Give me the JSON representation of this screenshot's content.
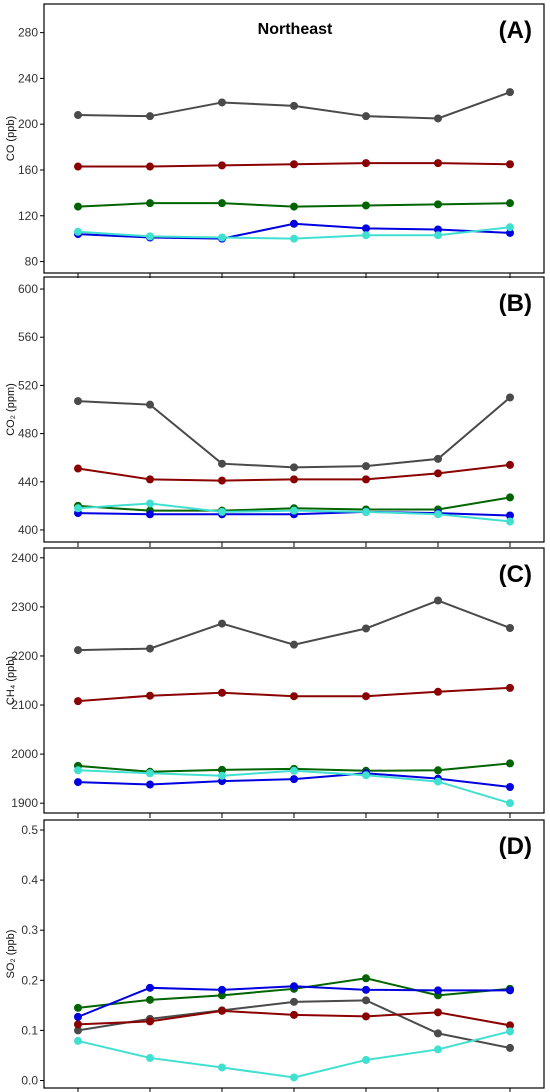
{
  "chart_data": [
    {
      "type": "line",
      "panel": "(A)",
      "title": "Northeast",
      "ylabel": "CO (ppb)",
      "ylim": [
        70,
        305
      ],
      "yticks": [
        "80",
        "120",
        "160",
        "200",
        "240",
        "280"
      ],
      "x": [
        1,
        2,
        3,
        4,
        5,
        6,
        7
      ],
      "series": [
        {
          "color": "#4a4a4a",
          "values": [
            208,
            207,
            219,
            216,
            207,
            205,
            228
          ]
        },
        {
          "color": "#8b0000",
          "values": [
            163,
            163,
            164,
            165,
            166,
            166,
            165
          ]
        },
        {
          "color": "#006400",
          "values": [
            128,
            131,
            131,
            128,
            129,
            130,
            131
          ]
        },
        {
          "color": "#0000e0",
          "values": [
            104,
            101,
            100,
            113,
            109,
            108,
            105
          ]
        },
        {
          "color": "#40e0d0",
          "values": [
            106,
            102,
            101,
            100,
            103,
            103,
            110
          ]
        }
      ]
    },
    {
      "type": "line",
      "panel": "(B)",
      "title": "",
      "ylabel": "CO₂ (ppm)",
      "ylim": [
        390,
        610
      ],
      "yticks": [
        "400",
        "440",
        "480",
        "520",
        "560",
        "600"
      ],
      "x": [
        1,
        2,
        3,
        4,
        5,
        6,
        7
      ],
      "series": [
        {
          "color": "#4a4a4a",
          "values": [
            507,
            504,
            455,
            452,
            453,
            459,
            510
          ]
        },
        {
          "color": "#8b0000",
          "values": [
            451,
            442,
            441,
            442,
            442,
            447,
            454
          ]
        },
        {
          "color": "#006400",
          "values": [
            420,
            416,
            416,
            418,
            417,
            417,
            427
          ]
        },
        {
          "color": "#0000e0",
          "values": [
            414,
            413,
            413,
            413,
            415,
            414,
            412
          ]
        },
        {
          "color": "#40e0d0",
          "values": [
            418,
            422,
            415,
            416,
            415,
            413,
            407
          ]
        }
      ]
    },
    {
      "type": "line",
      "panel": "(C)",
      "title": "",
      "ylabel": "CH₄ (ppb)",
      "ylim": [
        1880,
        2420
      ],
      "yticks": [
        "1900",
        "2000",
        "2100",
        "2200",
        "2300",
        "2400"
      ],
      "x": [
        1,
        2,
        3,
        4,
        5,
        6,
        7
      ],
      "series": [
        {
          "color": "#4a4a4a",
          "values": [
            2212,
            2215,
            2266,
            2223,
            2256,
            2313,
            2257
          ]
        },
        {
          "color": "#8b0000",
          "values": [
            2108,
            2119,
            2125,
            2118,
            2118,
            2127,
            2135
          ]
        },
        {
          "color": "#006400",
          "values": [
            1976,
            1964,
            1968,
            1970,
            1966,
            1967,
            1981
          ]
        },
        {
          "color": "#0000e0",
          "values": [
            1943,
            1938,
            1945,
            1949,
            1961,
            1950,
            1933
          ]
        },
        {
          "color": "#40e0d0",
          "values": [
            1967,
            1961,
            1956,
            1966,
            1957,
            1944,
            1900
          ]
        }
      ]
    },
    {
      "type": "line",
      "panel": "(D)",
      "title": "",
      "ylabel": "SO₂ (ppb)",
      "ylim": [
        -0.015,
        0.52
      ],
      "yticks": [
        "0.0",
        "0.1",
        "0.2",
        "0.3",
        "0.4",
        "0.5"
      ],
      "x": [
        1,
        2,
        3,
        4,
        5,
        6,
        7
      ],
      "series": [
        {
          "color": "#4a4a4a",
          "values": [
            0.1,
            0.123,
            0.14,
            0.157,
            0.16,
            0.094,
            0.065
          ]
        },
        {
          "color": "#8b0000",
          "values": [
            0.112,
            0.118,
            0.139,
            0.131,
            0.128,
            0.136,
            0.11
          ]
        },
        {
          "color": "#006400",
          "values": [
            0.145,
            0.161,
            0.17,
            0.183,
            0.204,
            0.17,
            0.183
          ]
        },
        {
          "color": "#0000e0",
          "values": [
            0.127,
            0.185,
            0.181,
            0.188,
            0.181,
            0.18,
            0.18
          ]
        },
        {
          "color": "#40e0d0",
          "values": [
            0.079,
            0.045,
            0.026,
            0.006,
            0.041,
            0.062,
            0.098
          ]
        }
      ]
    }
  ]
}
